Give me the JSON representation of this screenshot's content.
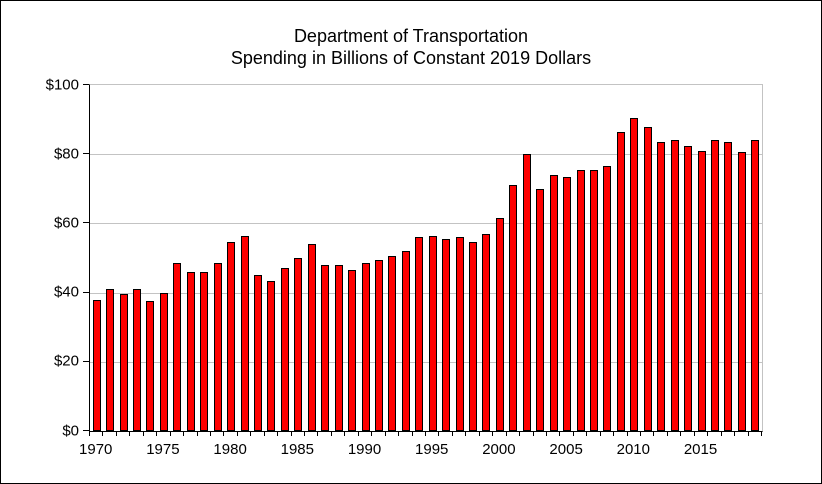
{
  "chart_data": {
    "type": "bar",
    "title_line1": "Department of Transportation",
    "title_line2": "Spending in Billions of Constant 2019 Dollars",
    "categories": [
      1970,
      1971,
      1972,
      1973,
      1974,
      1975,
      1976,
      1977,
      1978,
      1979,
      1980,
      1981,
      1982,
      1983,
      1984,
      1985,
      1986,
      1987,
      1988,
      1989,
      1990,
      1991,
      1992,
      1993,
      1994,
      1995,
      1996,
      1997,
      1998,
      1999,
      2000,
      2001,
      2002,
      2003,
      2004,
      2005,
      2006,
      2007,
      2008,
      2009,
      2010,
      2011,
      2012,
      2013,
      2014,
      2015,
      2016,
      2017,
      2018,
      2019
    ],
    "values": [
      38,
      41,
      39.5,
      41,
      37.5,
      40,
      48.5,
      46,
      46,
      48.5,
      54.5,
      56.5,
      45,
      43.5,
      47,
      50,
      54,
      48,
      48,
      46.5,
      48.5,
      49.5,
      50.5,
      52,
      56,
      56.5,
      55.5,
      56,
      54.5,
      57,
      61.5,
      71,
      80,
      70,
      74,
      73.5,
      75.5,
      75.5,
      76.5,
      86.5,
      90.5,
      88,
      83.5,
      84,
      82.5,
      81,
      84,
      83.5,
      80.5,
      84
    ],
    "ylim": [
      0,
      100
    ],
    "y_ticks": [
      0,
      20,
      40,
      60,
      80,
      100
    ],
    "y_tick_labels": [
      "$0",
      "$20",
      "$40",
      "$60",
      "$80",
      "$100"
    ],
    "x_tick_label_years": [
      1970,
      1975,
      1980,
      1985,
      1990,
      1995,
      2000,
      2005,
      2010,
      2015
    ],
    "grid": true,
    "legend": false,
    "bar_color": "#fe0000",
    "bar_border_color": "#000000",
    "gridline_color": "#c3c3c3",
    "axis_color": "#000000",
    "text_color": "#000000"
  }
}
